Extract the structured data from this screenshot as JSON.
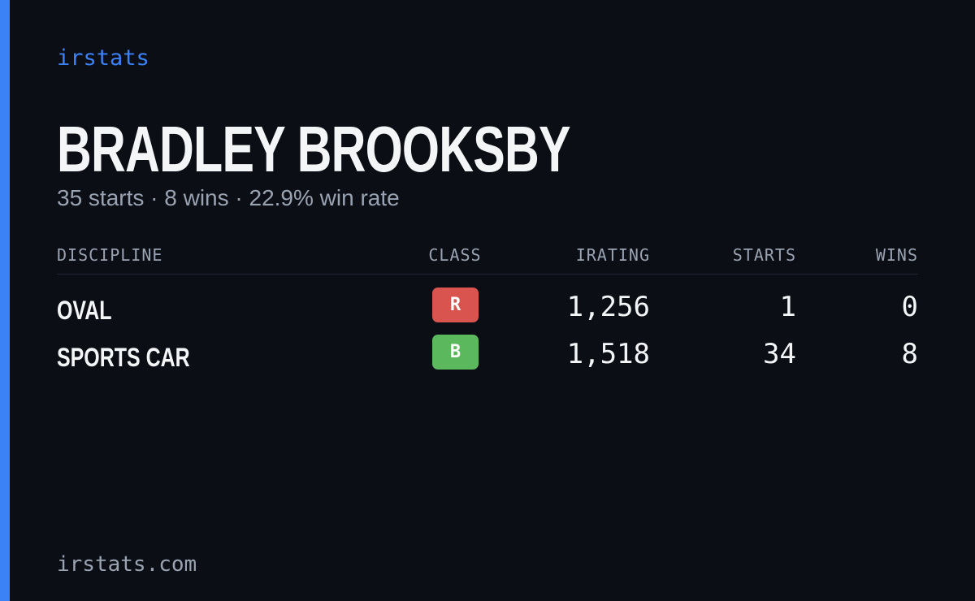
{
  "brand": "irstats",
  "header": {
    "title": "BRADLEY BROOKSBY",
    "subtitle": "35 starts · 8 wins · 22.9% win rate"
  },
  "table": {
    "columns": [
      "DISCIPLINE",
      "CLASS",
      "IRATING",
      "STARTS",
      "WINS"
    ],
    "rows": [
      [
        "OVAL",
        "R",
        "1,256",
        "1",
        "0"
      ],
      [
        "SPORTS CAR",
        "B",
        "1,518",
        "34",
        "8"
      ]
    ]
  },
  "footer": "irstats.com"
}
